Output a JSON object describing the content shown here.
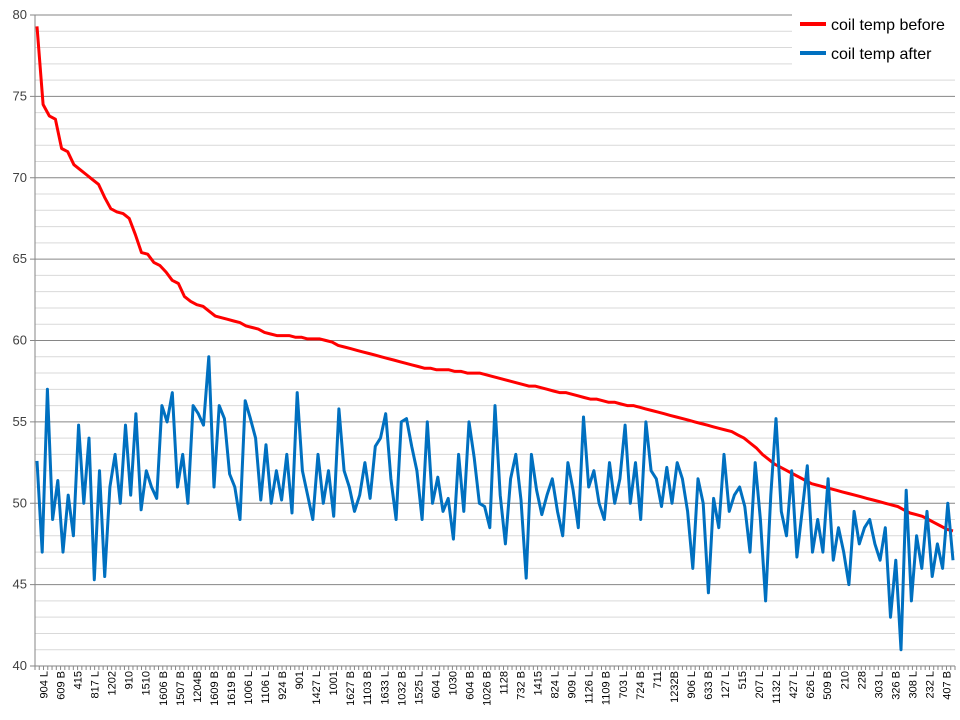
{
  "chart_data": {
    "type": "line",
    "ylim": [
      40,
      80
    ],
    "yticks": [
      40,
      45,
      50,
      55,
      60,
      65,
      70,
      75,
      80
    ],
    "minor_gridlines": true,
    "legend_position": "top-right",
    "x_tick_labels": [
      "904 L",
      "609 B",
      "415",
      "817 L",
      "1202",
      "910",
      "1510",
      "1606 B",
      "1507 B",
      "1204B",
      "1609 B",
      "1619 B",
      "1006 L",
      "1106 L",
      "924 B",
      "901",
      "1427 L",
      "1001",
      "1627 B",
      "1103 B",
      "1633 L",
      "1032 B",
      "1525 L",
      "604 L",
      "1030",
      "604 B",
      "1026 B",
      "1128",
      "732 B",
      "1415",
      "824 L",
      "909 L",
      "1126 L",
      "1109 B",
      "703 L",
      "724 B",
      "711",
      "1232B",
      "906 L",
      "633 B",
      "127 L",
      "515",
      "207 L",
      "1132 L",
      "427 L",
      "626 L",
      "509 B",
      "210",
      "228",
      "303 L",
      "326 B",
      "308 L",
      "232 L",
      "407 B"
    ],
    "series": [
      {
        "name": "coil temp before",
        "color": "#ff0000",
        "values": [
          79.3,
          74.5,
          73.8,
          73.6,
          71.8,
          71.6,
          70.8,
          70.5,
          70.2,
          69.9,
          69.6,
          68.8,
          68.1,
          67.9,
          67.8,
          67.5,
          66.5,
          65.4,
          65.3,
          64.8,
          64.6,
          64.2,
          63.7,
          63.5,
          62.7,
          62.4,
          62.2,
          62.1,
          61.8,
          61.5,
          61.4,
          61.3,
          61.2,
          61.1,
          60.9,
          60.8,
          60.7,
          60.5,
          60.4,
          60.3,
          60.3,
          60.3,
          60.2,
          60.2,
          60.1,
          60.1,
          60.1,
          60.0,
          59.9,
          59.7,
          59.6,
          59.5,
          59.4,
          59.3,
          59.2,
          59.1,
          59.0,
          58.9,
          58.8,
          58.7,
          58.6,
          58.5,
          58.4,
          58.3,
          58.3,
          58.2,
          58.2,
          58.2,
          58.1,
          58.1,
          58.0,
          58.0,
          58.0,
          57.9,
          57.8,
          57.7,
          57.6,
          57.5,
          57.4,
          57.3,
          57.2,
          57.2,
          57.1,
          57.0,
          56.9,
          56.8,
          56.8,
          56.7,
          56.6,
          56.5,
          56.4,
          56.4,
          56.3,
          56.2,
          56.2,
          56.1,
          56.0,
          56.0,
          55.9,
          55.8,
          55.7,
          55.6,
          55.5,
          55.4,
          55.3,
          55.2,
          55.1,
          55.0,
          54.9,
          54.8,
          54.7,
          54.6,
          54.5,
          54.4,
          54.2,
          54.0,
          53.7,
          53.4,
          53.0,
          52.7,
          52.4,
          52.2,
          52.0,
          51.8,
          51.6,
          51.4,
          51.2,
          51.1,
          51.0,
          50.9,
          50.8,
          50.7,
          50.6,
          50.5,
          50.4,
          50.3,
          50.2,
          50.1,
          50.0,
          49.9,
          49.8,
          49.6,
          49.4,
          49.3,
          49.2,
          49.0,
          48.8,
          48.6,
          48.4,
          48.3
        ]
      },
      {
        "name": "coil temp after",
        "color": "#0070c0",
        "values": [
          52.6,
          47.0,
          57.0,
          49.0,
          51.4,
          47.0,
          50.5,
          48.0,
          54.8,
          50.0,
          54.0,
          45.3,
          52.0,
          45.5,
          51.0,
          53.0,
          50.0,
          54.8,
          50.5,
          55.5,
          49.6,
          52.0,
          51.0,
          50.3,
          56.0,
          55.0,
          56.8,
          51.0,
          53.0,
          50.0,
          56.0,
          55.5,
          54.8,
          59.0,
          51.0,
          56.0,
          55.2,
          51.8,
          51.0,
          49.0,
          56.3,
          55.2,
          54.0,
          50.2,
          53.6,
          50.0,
          52.0,
          50.2,
          53.0,
          49.4,
          56.8,
          52.0,
          50.5,
          49.0,
          53.0,
          50.0,
          52.0,
          49.2,
          55.8,
          52.0,
          51.0,
          49.5,
          50.5,
          52.5,
          50.3,
          53.5,
          54.0,
          55.5,
          51.5,
          49.0,
          55.0,
          55.2,
          53.5,
          52.0,
          49.0,
          55.0,
          50.0,
          51.6,
          49.5,
          50.3,
          47.8,
          53.0,
          49.5,
          55.0,
          52.8,
          50.0,
          49.8,
          48.5,
          56.0,
          50.5,
          47.5,
          51.5,
          53.0,
          50.2,
          45.4,
          53.0,
          50.8,
          49.3,
          50.5,
          51.5,
          49.5,
          48.0,
          52.5,
          50.8,
          48.5,
          55.3,
          51.0,
          52.0,
          50.0,
          49.0,
          52.5,
          50.0,
          51.5,
          54.8,
          50.0,
          52.5,
          49.0,
          55.0,
          52.0,
          51.5,
          49.8,
          52.2,
          50.0,
          52.5,
          51.5,
          49.5,
          46.0,
          51.5,
          50.0,
          44.5,
          50.3,
          48.5,
          53.0,
          49.5,
          50.5,
          51.0,
          49.8,
          47.0,
          52.5,
          49.0,
          44.0,
          50.5,
          55.2,
          49.5,
          48.0,
          52.0,
          46.7,
          49.5,
          52.3,
          47.0,
          49.0,
          47.0,
          51.5,
          46.5,
          48.5,
          47.0,
          45.0,
          49.5,
          47.5,
          48.5,
          49.0,
          47.5,
          46.5,
          48.5,
          43.0,
          46.5,
          41.0,
          50.8,
          44.0,
          48.0,
          46.0,
          49.5,
          45.5,
          47.5,
          46.0,
          50.0,
          46.5
        ]
      }
    ]
  }
}
